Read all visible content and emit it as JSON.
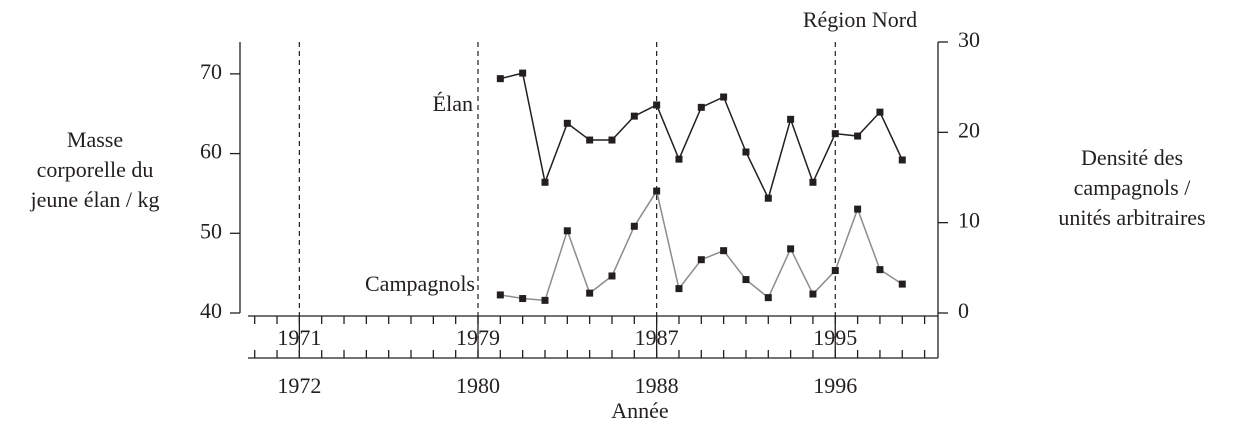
{
  "chart_data": {
    "type": "line",
    "annotation": "Région Nord",
    "ylabel": [
      "Masse",
      "corporelle du",
      "jeune élan / kg"
    ],
    "y2label": [
      "Densité des",
      "campagnols /",
      "unités arbitraires"
    ],
    "xlabel": "Année",
    "x": [
      1980,
      1981,
      1982,
      1983,
      1984,
      1985,
      1986,
      1987,
      1988,
      1989,
      1990,
      1991,
      1992,
      1993,
      1994,
      1995,
      1996,
      1997,
      1998
    ],
    "series": [
      {
        "name": "Élan",
        "color": "#231f20",
        "marker_color": "#231f20",
        "values": [
          69.4,
          70.1,
          56.4,
          63.8,
          61.7,
          61.7,
          64.7,
          66.1,
          59.3,
          65.8,
          67.1,
          60.2,
          54.4,
          64.3,
          56.4,
          62.5,
          62.2,
          65.2,
          59.2
        ]
      },
      {
        "name": "Campagnols",
        "axis": "y2",
        "color": "#8c8c8c",
        "marker_color": "#231f20",
        "values": [
          2.0,
          1.6,
          1.4,
          9.1,
          2.2,
          4.1,
          9.6,
          13.5,
          2.7,
          5.9,
          6.9,
          3.7,
          1.7,
          7.1,
          2.1,
          4.7,
          11.5,
          4.8,
          3.2
        ]
      }
    ],
    "xlim": [
      1968.7,
      1999.6
    ],
    "xticks": [
      1971,
      1979,
      1987,
      1995
    ],
    "x2ticks": [
      {
        "value": 1971,
        "label": "1972"
      },
      {
        "value": 1979,
        "label": "1980"
      },
      {
        "value": 1987,
        "label": "1988"
      },
      {
        "value": 1995,
        "label": "1996"
      }
    ],
    "minor_xtick_step": 1,
    "tick_vlines": true,
    "ylim": [
      40,
      74
    ],
    "yticks": [
      40,
      50,
      60,
      70
    ],
    "y2lim": [
      0,
      30
    ],
    "y2ticks": [
      0,
      10,
      20,
      30
    ]
  }
}
